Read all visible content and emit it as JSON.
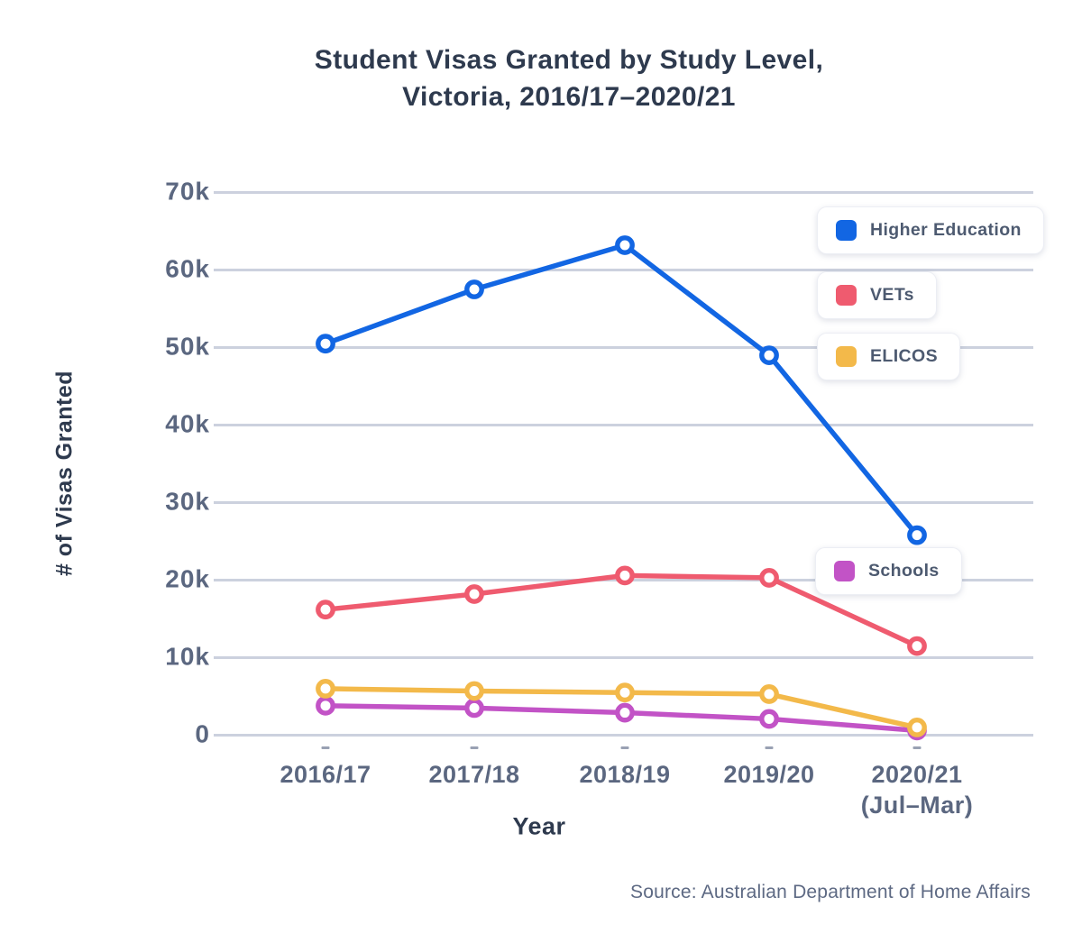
{
  "title": {
    "line1": "Student Visas Granted by Study Level,",
    "line2": "Victoria, 2016/17–2020/21"
  },
  "axes": {
    "y_label": "# of Visas Granted",
    "x_label": "Year"
  },
  "source": "Source: Australian Department of Home Affairs",
  "colors": {
    "grid": "#ccd1de",
    "tick_text": "#5b6780",
    "title_text": "#2e3a4e",
    "axis_dash": "#99a1b3"
  },
  "chart_data": {
    "type": "line",
    "title": "Student Visas Granted by Study Level, Victoria, 2016/17–2020/21",
    "xlabel": "Year",
    "ylabel": "# of Visas Granted",
    "ylim": [
      0,
      70000
    ],
    "grid": true,
    "legend_position": "right-overlay",
    "marker": "open-circle",
    "categories": [
      "2016/17",
      "2017/18",
      "2018/19",
      "2019/20",
      "2020/21 (Jul–Mar)"
    ],
    "x_tick_display": [
      [
        "2016/17"
      ],
      [
        "2017/18"
      ],
      [
        "2018/19"
      ],
      [
        "2019/20"
      ],
      [
        "2020/21",
        "(Jul–Mar)"
      ]
    ],
    "y_ticks": [
      {
        "value": 0,
        "label": "0"
      },
      {
        "value": 10000,
        "label": "10k"
      },
      {
        "value": 20000,
        "label": "20k"
      },
      {
        "value": 30000,
        "label": "30k"
      },
      {
        "value": 40000,
        "label": "40k"
      },
      {
        "value": 50000,
        "label": "50k"
      },
      {
        "value": 60000,
        "label": "60k"
      },
      {
        "value": 70000,
        "label": "70k"
      }
    ],
    "series": [
      {
        "name": "Higher Education",
        "color": "#1266e3",
        "values": [
          50500,
          57500,
          63200,
          49000,
          25800
        ]
      },
      {
        "name": "VETs",
        "color": "#ef5b6f",
        "values": [
          16200,
          18200,
          20600,
          20300,
          11500
        ]
      },
      {
        "name": "ELICOS",
        "color": "#f3b94a",
        "values": [
          6000,
          5700,
          5500,
          5300,
          1000
        ]
      },
      {
        "name": "Schools",
        "color": "#c253c6",
        "values": [
          3800,
          3500,
          2900,
          2100,
          600
        ]
      }
    ]
  }
}
